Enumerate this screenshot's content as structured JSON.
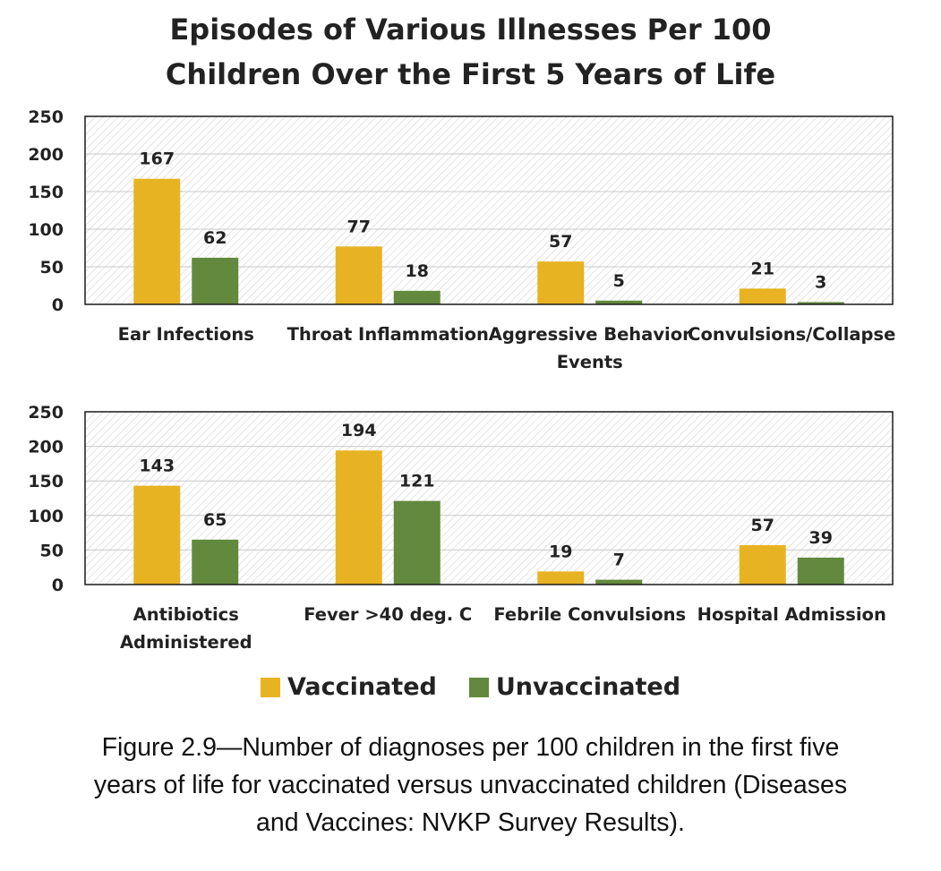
{
  "title": {
    "line1": "Episodes of Various Illnesses Per 100",
    "line2": "Children Over the First 5 Years of Life"
  },
  "colors": {
    "vaccinated": "#e8b323",
    "unvaccinated": "#62893d",
    "hatch": "#d2d2d2",
    "grid": "#c8c8c8"
  },
  "legend": {
    "vaccinated": "Vaccinated",
    "unvaccinated": "Unvaccinated"
  },
  "caption": {
    "line1": "Figure 2.9—Number of diagnoses per 100 children in the first five",
    "line2": "years of life for vaccinated versus unvaccinated children (Diseases",
    "line3": "and Vaccines: NVKP Survey Results)."
  },
  "chart_data": [
    {
      "type": "bar",
      "categories": [
        [
          "Ear Infections"
        ],
        [
          "Throat Inflammation"
        ],
        [
          "Aggressive Behavior",
          "Events"
        ],
        [
          "Convulsions/Collapse"
        ]
      ],
      "series": [
        {
          "name": "Vaccinated",
          "values": [
            167,
            77,
            57,
            21
          ]
        },
        {
          "name": "Unvaccinated",
          "values": [
            62,
            18,
            5,
            3
          ]
        }
      ],
      "ylim": [
        0,
        250
      ],
      "yticks": [
        0,
        50,
        100,
        150,
        200,
        250
      ],
      "grid": true
    },
    {
      "type": "bar",
      "categories": [
        [
          "Antibiotics",
          "Administered"
        ],
        [
          "Fever >40 deg. C"
        ],
        [
          "Febrile Convulsions"
        ],
        [
          "Hospital Admission"
        ]
      ],
      "series": [
        {
          "name": "Vaccinated",
          "values": [
            143,
            194,
            19,
            57
          ]
        },
        {
          "name": "Unvaccinated",
          "values": [
            65,
            121,
            7,
            39
          ]
        }
      ],
      "ylim": [
        0,
        250
      ],
      "yticks": [
        0,
        50,
        100,
        150,
        200,
        250
      ],
      "grid": true
    }
  ]
}
